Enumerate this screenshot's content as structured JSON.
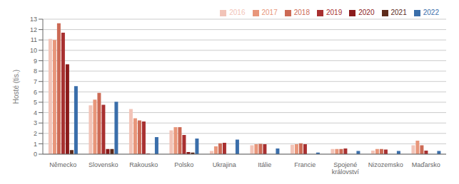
{
  "chart_data": {
    "type": "bar",
    "categories": [
      "Německo",
      "Slovensko",
      "Rakousko",
      "Polsko",
      "Ukrajina",
      "Itálie",
      "Francie",
      "Spojené\nkrálovství",
      "Nizozemsko",
      "Maďarsko"
    ],
    "series": [
      {
        "name": "2016",
        "color": "#f2c4b8",
        "values": [
          11.1,
          4.7,
          4.35,
          2.3,
          0.3,
          0.85,
          0.9,
          0.5,
          0.35,
          0.85
        ]
      },
      {
        "name": "2017",
        "color": "#e8967a",
        "values": [
          11.0,
          5.25,
          3.45,
          2.6,
          0.75,
          0.95,
          0.95,
          0.5,
          0.5,
          1.3
        ]
      },
      {
        "name": "2018",
        "color": "#cc6a55",
        "values": [
          12.6,
          5.9,
          3.25,
          2.6,
          1.05,
          1.0,
          1.05,
          0.5,
          0.5,
          0.85
        ]
      },
      {
        "name": "2019",
        "color": "#a83030",
        "values": [
          11.7,
          4.75,
          3.15,
          1.85,
          1.1,
          0.95,
          0.95,
          0.55,
          0.45,
          0.35
        ]
      },
      {
        "name": "2020",
        "color": "#8b1a1a",
        "values": [
          8.65,
          0.5,
          0.05,
          0.2,
          0.0,
          0.0,
          0.0,
          0.0,
          0.0,
          0.0
        ]
      },
      {
        "name": "2021",
        "color": "#5c2a1a",
        "values": [
          0.4,
          0.5,
          0.0,
          0.15,
          0.0,
          0.0,
          0.0,
          0.0,
          0.0,
          0.0
        ]
      },
      {
        "name": "2022",
        "color": "#3a6eaa",
        "values": [
          6.55,
          5.05,
          1.65,
          1.5,
          1.4,
          0.55,
          0.15,
          0.3,
          0.3,
          0.3
        ]
      }
    ],
    "ylabel": "Hosté (tis.)",
    "ylim": [
      0,
      13
    ],
    "yticks": [
      0,
      1,
      2,
      3,
      4,
      5,
      6,
      7,
      8,
      9,
      10,
      11,
      12,
      13
    ],
    "grid": true,
    "legend": "upper right"
  }
}
